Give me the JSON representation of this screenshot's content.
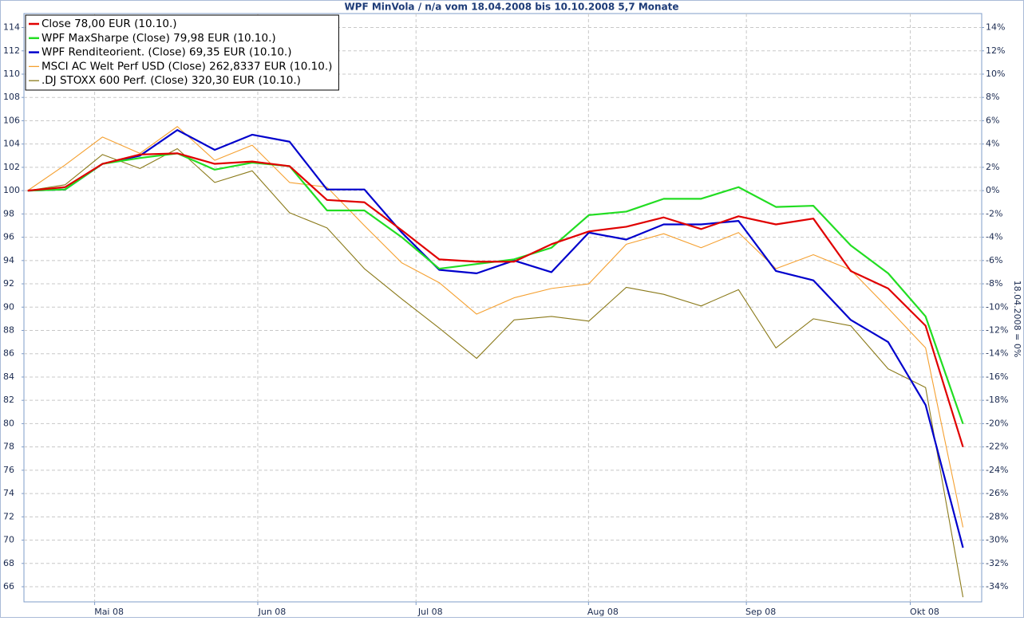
{
  "chart_data": {
    "type": "line",
    "title": "WPF MinVola / n/a vom 18.04.2008 bis 10.10.2008 5,7 Monate",
    "y2label": "18.04.2008 = 0%",
    "x": [
      0,
      1,
      2,
      3,
      4,
      5,
      6,
      7,
      8,
      9,
      10,
      11,
      12,
      13,
      14,
      15,
      16,
      17,
      18,
      19,
      20,
      21,
      22,
      23,
      24,
      25
    ],
    "xlim": [
      -0.1,
      25.5
    ],
    "xticks": [
      {
        "value": 1.79,
        "label": "Mai 08"
      },
      {
        "value": 6.15,
        "label": "Jun 08"
      },
      {
        "value": 10.38,
        "label": "Jul 08"
      },
      {
        "value": 14.99,
        "label": "Aug 08"
      },
      {
        "value": 19.21,
        "label": "Sep 08"
      },
      {
        "value": 23.59,
        "label": "Okt 08"
      }
    ],
    "ylim": [
      64.7,
      115.2
    ],
    "yticks": [
      66,
      68,
      70,
      72,
      74,
      76,
      78,
      80,
      82,
      84,
      86,
      88,
      90,
      92,
      94,
      96,
      98,
      100,
      102,
      104,
      106,
      108,
      110,
      112,
      114
    ],
    "y2lim": [
      -35.3,
      15.2
    ],
    "y2ticks": [
      {
        "value": -34,
        "label": "-34%"
      },
      {
        "value": -32,
        "label": "-32%"
      },
      {
        "value": -30,
        "label": "-30%"
      },
      {
        "value": -28,
        "label": "-28%"
      },
      {
        "value": -26,
        "label": "-26%"
      },
      {
        "value": -24,
        "label": "-24%"
      },
      {
        "value": -22,
        "label": "-22%"
      },
      {
        "value": -20,
        "label": "-20%"
      },
      {
        "value": -18,
        "label": "-18%"
      },
      {
        "value": -16,
        "label": "-16%"
      },
      {
        "value": -14,
        "label": "-14%"
      },
      {
        "value": -12,
        "label": "-12%"
      },
      {
        "value": -10,
        "label": "-10%"
      },
      {
        "value": -8,
        "label": "-8%"
      },
      {
        "value": -6,
        "label": "-6%"
      },
      {
        "value": -4,
        "label": "-4%"
      },
      {
        "value": -2,
        "label": "-2%"
      },
      {
        "value": 0,
        "label": "0%"
      },
      {
        "value": 2,
        "label": "2%"
      },
      {
        "value": 4,
        "label": "4%"
      },
      {
        "value": 6,
        "label": "6%"
      },
      {
        "value": 8,
        "label": "8%"
      },
      {
        "value": 10,
        "label": "10%"
      },
      {
        "value": 12,
        "label": "12%"
      },
      {
        "value": 14,
        "label": "14%"
      }
    ],
    "grid": true,
    "legend": "upper left",
    "series": [
      {
        "name": "Close 78,00 EUR (10.10.)",
        "color": "#e00000",
        "values": [
          100,
          100.3,
          102.3,
          103.1,
          103.2,
          102.3,
          102.5,
          102.1,
          99.2,
          99.0,
          96.6,
          94.1,
          93.9,
          93.9,
          95.4,
          96.5,
          96.9,
          97.7,
          96.7,
          97.8,
          97.1,
          97.6,
          93.1,
          91.6,
          88.4,
          78.0
        ]
      },
      {
        "name": "WPF MaxSharpe (Close) 79,98 EUR (10.10.)",
        "color": "#22dd22",
        "values": [
          100,
          100.1,
          102.3,
          102.8,
          103.2,
          101.8,
          102.4,
          102.1,
          98.3,
          98.3,
          96.0,
          93.3,
          93.7,
          94.1,
          95.1,
          97.9,
          98.2,
          99.3,
          99.3,
          100.3,
          98.6,
          98.7,
          95.3,
          92.9,
          89.2,
          79.98
        ]
      },
      {
        "name": "WPF Renditeorient. (Close) 69,35 EUR (10.10.)",
        "color": "#0000cc",
        "values": [
          100,
          100.1,
          102.3,
          103.0,
          105.2,
          103.5,
          104.8,
          104.2,
          100.1,
          100.1,
          96.4,
          93.2,
          92.9,
          94.0,
          93.0,
          96.4,
          95.8,
          97.1,
          97.1,
          97.4,
          93.1,
          92.3,
          88.9,
          87.0,
          81.6,
          69.35
        ]
      },
      {
        "name": "MSCI AC Welt Perf USD (Close) 262,8337 EUR (10.10.)",
        "color": "#f5a030",
        "values": [
          100,
          102.2,
          104.6,
          103.2,
          105.5,
          102.6,
          103.9,
          100.7,
          100.3,
          97.0,
          93.8,
          92.1,
          89.4,
          90.8,
          91.6,
          92.0,
          95.4,
          96.3,
          95.1,
          96.4,
          93.3,
          94.5,
          93.2,
          89.9,
          86.5,
          71.1
        ]
      },
      {
        "name": ".DJ STOXX 600 Perf. (Close) 320,30 EUR (10.10.)",
        "color": "#8b7a1a",
        "values": [
          100,
          100.5,
          103.1,
          101.9,
          103.6,
          100.7,
          101.7,
          98.1,
          96.8,
          93.3,
          90.7,
          88.2,
          85.6,
          88.9,
          89.2,
          88.8,
          91.7,
          91.1,
          90.1,
          91.5,
          86.5,
          89.0,
          88.4,
          84.7,
          83.1,
          65.1
        ]
      }
    ]
  }
}
